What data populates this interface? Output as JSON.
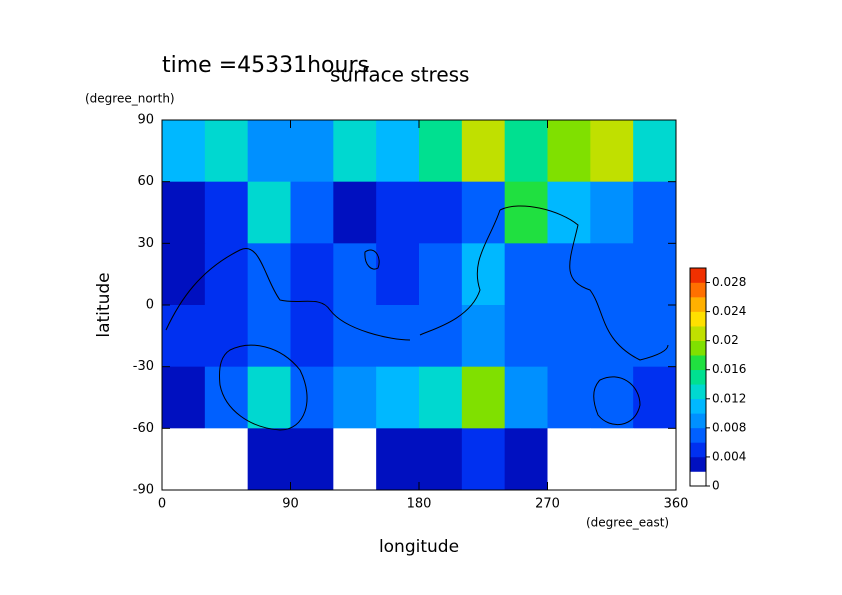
{
  "chart_data": {
    "type": "contour",
    "title": "surface stress",
    "subtitle": "time =45331hours",
    "x_label": "longitude",
    "x_unit": "(degree_east)",
    "y_label": "latitude",
    "y_unit": "(degree_north)",
    "xlim": [
      0,
      360
    ],
    "xticks": [
      0,
      90,
      180,
      270,
      360
    ],
    "ylim": [
      -90,
      90
    ],
    "yticks": [
      -90,
      -60,
      -30,
      0,
      30,
      60,
      90
    ],
    "z": [
      [
        0.01,
        0.012,
        0.008,
        0.008,
        0.012,
        0.01,
        0.014,
        0.02,
        0.014,
        0.018,
        0.02,
        0.012
      ],
      [
        0.002,
        0.004,
        0.012,
        0.006,
        0.002,
        0.004,
        0.004,
        0.006,
        0.016,
        0.01,
        0.008,
        0.006
      ],
      [
        0.002,
        0.004,
        0.006,
        0.004,
        0.006,
        0.004,
        0.006,
        0.01,
        0.006,
        0.006,
        0.006,
        0.006
      ],
      [
        0.004,
        0.004,
        0.006,
        0.004,
        0.006,
        0.006,
        0.006,
        0.008,
        0.006,
        0.006,
        0.006,
        0.006
      ],
      [
        0.002,
        0.006,
        0.012,
        0.006,
        0.008,
        0.01,
        0.012,
        0.018,
        0.008,
        0.006,
        0.006,
        0.004
      ],
      [
        0,
        0,
        0.002,
        0.002,
        0,
        0.002,
        0.002,
        0.004,
        0.002,
        0,
        0,
        0
      ]
    ],
    "colorbar_lim": [
      0,
      0.03
    ],
    "colorbar_ticks": [
      0,
      0.004,
      0.008,
      0.012,
      0.016,
      0.02,
      0.024,
      0.028
    ],
    "level_colors": [
      "#ffffff",
      "#0010c0",
      "#0030f0",
      "#0060ff",
      "#0090ff",
      "#00b8ff",
      "#00d8d0",
      "#00e090",
      "#20e040",
      "#80e000",
      "#c0e000",
      "#ffe000",
      "#ffb000",
      "#ff7000",
      "#f03000"
    ]
  }
}
